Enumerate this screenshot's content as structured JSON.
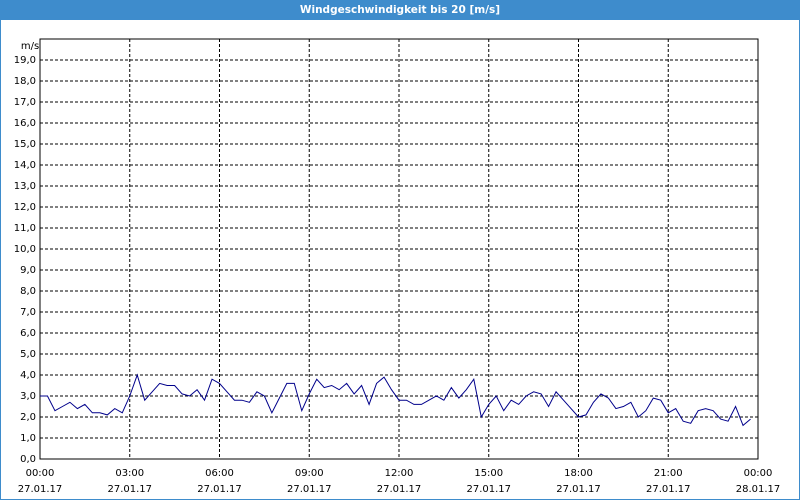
{
  "chart_data": {
    "type": "line",
    "title": "Windgeschwindigkeit bis 20 [m/s]",
    "y_unit": "m/s",
    "x": [
      0,
      0.25,
      0.5,
      0.75,
      1,
      1.25,
      1.5,
      1.75,
      2,
      2.25,
      2.5,
      2.75,
      3,
      3.25,
      3.5,
      3.75,
      4,
      4.25,
      4.5,
      4.75,
      5,
      5.25,
      5.5,
      5.75,
      6,
      6.25,
      6.5,
      6.75,
      7,
      7.25,
      7.5,
      7.75,
      8,
      8.25,
      8.5,
      8.75,
      9,
      9.25,
      9.5,
      9.75,
      10,
      10.25,
      10.5,
      10.75,
      11,
      11.25,
      11.5,
      11.75,
      12,
      12.25,
      12.5,
      12.75,
      13,
      13.25,
      13.5,
      13.75,
      14,
      14.25,
      14.5,
      14.75,
      15,
      15.25,
      15.5,
      15.75,
      16,
      16.25,
      16.5,
      16.75,
      17,
      17.25,
      17.5,
      17.75,
      18,
      18.25,
      18.5,
      18.75,
      19,
      19.25,
      19.5,
      19.75,
      20,
      20.25,
      20.5,
      20.75,
      21,
      21.25,
      21.5,
      21.75,
      22,
      22.25,
      22.5,
      22.75,
      23,
      23.25,
      23.5,
      23.75
    ],
    "series": [
      {
        "name": "Windgeschwindigkeit",
        "color": "#00008b",
        "values": [
          3.0,
          3.0,
          2.3,
          2.5,
          2.7,
          2.4,
          2.6,
          2.2,
          2.2,
          2.1,
          2.4,
          2.2,
          3.0,
          4.0,
          2.8,
          3.2,
          3.6,
          3.5,
          3.5,
          3.1,
          3.0,
          3.3,
          2.8,
          3.8,
          3.6,
          3.2,
          2.8,
          2.8,
          2.7,
          3.2,
          3.0,
          2.2,
          2.9,
          3.6,
          3.6,
          2.3,
          3.1,
          3.8,
          3.4,
          3.5,
          3.3,
          3.6,
          3.1,
          3.5,
          2.6,
          3.6,
          3.9,
          3.3,
          2.8,
          2.8,
          2.6,
          2.6,
          2.8,
          3.0,
          2.8,
          3.4,
          2.9,
          3.3,
          3.8,
          2.0,
          2.6,
          3.0,
          2.3,
          2.8,
          2.6,
          3.0,
          3.2,
          3.1,
          2.5,
          3.2,
          2.8,
          2.4,
          2.0,
          2.1,
          2.7,
          3.1,
          2.9,
          2.4,
          2.5,
          2.7,
          2.0,
          2.3,
          2.9,
          2.8,
          2.2,
          2.4,
          1.8,
          1.7,
          2.3,
          2.4,
          2.3,
          1.9,
          1.8,
          2.5,
          1.6,
          1.9
        ]
      }
    ],
    "xlim": [
      0,
      24
    ],
    "xticks": [
      {
        "value": 0,
        "label": "00:00"
      },
      {
        "value": 3,
        "label": "03:00"
      },
      {
        "value": 6,
        "label": "06:00"
      },
      {
        "value": 9,
        "label": "09:00"
      },
      {
        "value": 12,
        "label": "12:00"
      },
      {
        "value": 15,
        "label": "15:00"
      },
      {
        "value": 18,
        "label": "18:00"
      },
      {
        "value": 21,
        "label": "21:00"
      },
      {
        "value": 24,
        "label": "00:00"
      }
    ],
    "xtick_dates": [
      "27.01.17",
      "27.01.17",
      "27.01.17",
      "27.01.17",
      "27.01.17",
      "27.01.17",
      "27.01.17",
      "27.01.17",
      "28.01.17"
    ],
    "ylim": [
      0,
      20
    ],
    "yticks": [
      {
        "value": 0,
        "label": "0,0"
      },
      {
        "value": 1,
        "label": "1,0"
      },
      {
        "value": 2,
        "label": "2,0"
      },
      {
        "value": 3,
        "label": "3,0"
      },
      {
        "value": 4,
        "label": "4,0"
      },
      {
        "value": 5,
        "label": "5,0"
      },
      {
        "value": 6,
        "label": "6,0"
      },
      {
        "value": 7,
        "label": "7,0"
      },
      {
        "value": 8,
        "label": "8,0"
      },
      {
        "value": 9,
        "label": "9,0"
      },
      {
        "value": 10,
        "label": "10,0"
      },
      {
        "value": 11,
        "label": "11,0"
      },
      {
        "value": 12,
        "label": "12,0"
      },
      {
        "value": 13,
        "label": "13,0"
      },
      {
        "value": 14,
        "label": "14,0"
      },
      {
        "value": 15,
        "label": "15,0"
      },
      {
        "value": 16,
        "label": "16,0"
      },
      {
        "value": 17,
        "label": "17,0"
      },
      {
        "value": 18,
        "label": "18,0"
      },
      {
        "value": 19,
        "label": "19,0"
      }
    ],
    "grid": true
  }
}
